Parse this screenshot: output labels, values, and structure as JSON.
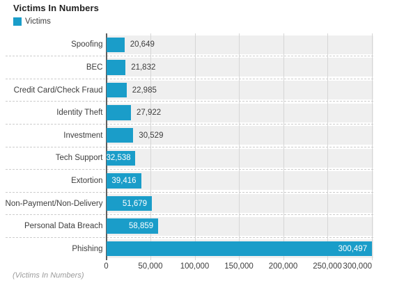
{
  "title": "Victims In Numbers",
  "legend": {
    "label": "Victims",
    "color": "#1A9DC9"
  },
  "footer": "(Victims In Numbers)",
  "colors": {
    "bar": "#1A9DC9",
    "row_band": "#efefef",
    "gridline": "#d6d6d6",
    "row_separator": "#cccccc",
    "axis_line": "#5e5e5e",
    "label_text": "#3d3d3d",
    "inside_label_text": "#ffffff",
    "footer_text": "#9b9b9b"
  },
  "chart_data": {
    "type": "bar",
    "orientation": "horizontal",
    "title": "Victims In Numbers",
    "legend_entries": [
      "Victims"
    ],
    "legend_position": "top-left",
    "categories": [
      "Spoofing",
      "BEC",
      "Credit Card/Check Fraud",
      "Identity Theft",
      "Investment",
      "Tech Support",
      "Extortion",
      "Non-Payment/Non-Delivery",
      "Personal Data Breach",
      "Phishing"
    ],
    "values": [
      20649,
      21832,
      22985,
      27922,
      30529,
      32538,
      39416,
      51679,
      58859,
      300497
    ],
    "value_labels": [
      "20,649",
      "21,832",
      "22,985",
      "27,922",
      "30,529",
      "32,538",
      "39,416",
      "51,679",
      "58,859",
      "300,497"
    ],
    "value_label_inside": [
      false,
      false,
      false,
      false,
      false,
      true,
      true,
      true,
      true,
      true
    ],
    "x_tick_values": [
      0,
      50000,
      100000,
      150000,
      200000,
      250000,
      300000
    ],
    "x_tick_labels": [
      "0",
      "50,000",
      "100,000",
      "150,000",
      "200,000",
      "250,000",
      "300,000"
    ],
    "xlim": [
      0,
      302000
    ],
    "xlabel": "",
    "ylabel": "",
    "grid": "vertical solid gridlines at ticks; dotted horizontal row separators",
    "footnote": "(Victims In Numbers)"
  }
}
